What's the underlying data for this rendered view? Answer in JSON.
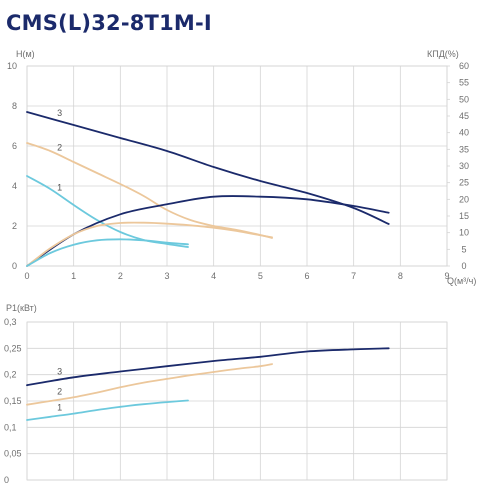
{
  "title": "CMS(L)32-8T1M-I",
  "colors": {
    "curve_3": "#1b2a6b",
    "curve_2": "#ecc79b",
    "curve_1": "#6cc9dd",
    "grid": "#d4d4d4",
    "tick_text": "#6f6f6f"
  },
  "chart_data": [
    {
      "type": "line",
      "xlabel": "Q(м³/ч)",
      "ylabel": "H(м)",
      "y2label": "КПД(%)",
      "xlim": [
        0,
        9
      ],
      "ylim": [
        0,
        10
      ],
      "y2lim": [
        0,
        60
      ],
      "x_ticks": [
        "0",
        "1",
        "2",
        "3",
        "4",
        "5",
        "6",
        "7",
        "8",
        "9"
      ],
      "y_ticks": [
        "0",
        "2",
        "4",
        "6",
        "8",
        "10"
      ],
      "y2_ticks": [
        "0",
        "5",
        "10",
        "15",
        "20",
        "25",
        "30",
        "35",
        "40",
        "45",
        "50",
        "55",
        "60"
      ],
      "grid": true,
      "series": [
        {
          "name": "3",
          "axis": "left",
          "color": "#1b2a6b",
          "x": [
            0,
            1,
            2,
            3,
            4,
            5,
            6,
            7,
            7.75
          ],
          "y": [
            7.7,
            7.05,
            6.4,
            5.75,
            4.95,
            4.25,
            3.65,
            2.9,
            2.1
          ]
        },
        {
          "name": "2",
          "axis": "left",
          "color": "#ecc79b",
          "x": [
            0,
            0.5,
            1,
            1.5,
            2,
            2.5,
            3,
            3.5,
            4,
            4.5,
            5,
            5.25
          ],
          "y": [
            6.15,
            5.75,
            5.2,
            4.65,
            4.1,
            3.5,
            2.8,
            2.3,
            2.0,
            1.8,
            1.55,
            1.4
          ]
        },
        {
          "name": "1",
          "axis": "left",
          "color": "#6cc9dd",
          "x": [
            0,
            0.5,
            1,
            1.5,
            2,
            2.5,
            3,
            3.45
          ],
          "y": [
            4.5,
            3.85,
            3.05,
            2.3,
            1.7,
            1.3,
            1.1,
            0.95
          ]
        },
        {
          "name": "",
          "axis": "right",
          "color": "#1b2a6b",
          "x": [
            0,
            1,
            2,
            3,
            4,
            5,
            6,
            7,
            7.75
          ],
          "y": [
            0,
            9.5,
            15.5,
            18.5,
            20.8,
            20.8,
            20.0,
            18.0,
            16.0
          ]
        },
        {
          "name": "",
          "axis": "right",
          "color": "#ecc79b",
          "x": [
            0,
            0.5,
            1,
            1.5,
            2,
            2.5,
            3,
            3.5,
            4,
            4.5,
            5,
            5.25
          ],
          "y": [
            0,
            5.3,
            9.5,
            12.0,
            12.9,
            13.0,
            12.7,
            12.2,
            11.5,
            10.5,
            9.2,
            8.6
          ]
        },
        {
          "name": "",
          "axis": "right",
          "color": "#6cc9dd",
          "x": [
            0,
            0.5,
            1,
            1.5,
            2,
            2.5,
            3,
            3.45
          ],
          "y": [
            0,
            3.9,
            6.4,
            7.7,
            8.0,
            7.7,
            7.0,
            6.5
          ]
        }
      ]
    },
    {
      "type": "line",
      "ylabel": "P1(кВт)",
      "xlim": [
        0,
        9
      ],
      "ylim": [
        0,
        0.3
      ],
      "y_ticks": [
        "0",
        "0,05",
        "0,1",
        "0,15",
        "0,2",
        "0,25",
        "0,3"
      ],
      "grid": true,
      "series": [
        {
          "name": "3",
          "color": "#1b2a6b",
          "x": [
            0,
            1,
            2,
            3,
            4,
            5,
            6,
            7,
            7.75
          ],
          "y": [
            0.18,
            0.195,
            0.206,
            0.216,
            0.226,
            0.234,
            0.244,
            0.248,
            0.25
          ]
        },
        {
          "name": "2",
          "color": "#ecc79b",
          "x": [
            0,
            0.5,
            1,
            1.5,
            2,
            2.5,
            3,
            3.5,
            4,
            4.5,
            5,
            5.25
          ],
          "y": [
            0.143,
            0.15,
            0.157,
            0.166,
            0.176,
            0.185,
            0.192,
            0.199,
            0.205,
            0.211,
            0.216,
            0.22
          ]
        },
        {
          "name": "1",
          "color": "#6cc9dd",
          "x": [
            0,
            0.5,
            1,
            1.5,
            2,
            2.5,
            3,
            3.45
          ],
          "y": [
            0.114,
            0.12,
            0.126,
            0.133,
            0.139,
            0.144,
            0.148,
            0.151
          ]
        }
      ]
    }
  ]
}
